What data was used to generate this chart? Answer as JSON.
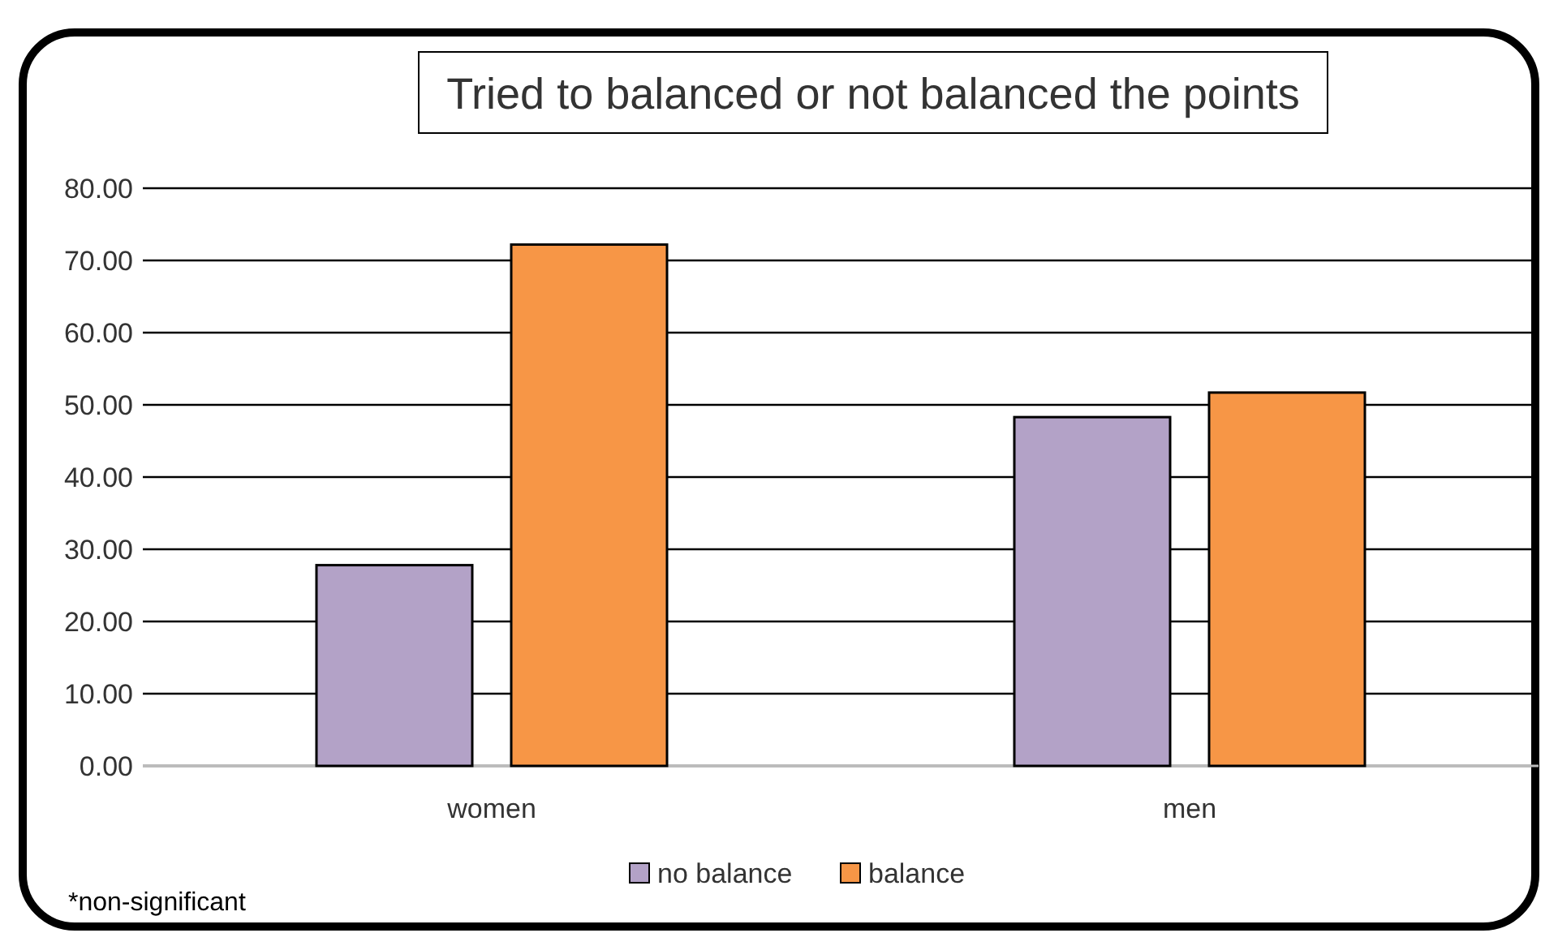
{
  "chart_data": {
    "type": "bar",
    "title": "Tried to balanced or not balanced the points",
    "categories": [
      "women",
      "men"
    ],
    "series": [
      {
        "name": "no balance",
        "color": "#b3a2c7",
        "values": [
          27.8,
          48.3
        ]
      },
      {
        "name": "balance",
        "color": "#f79646",
        "values": [
          72.2,
          51.7
        ]
      }
    ],
    "ylim": [
      0,
      80
    ],
    "yticks": [
      {
        "value": 0,
        "label": "0.00"
      },
      {
        "value": 10,
        "label": "10.00"
      },
      {
        "value": 20,
        "label": "20.00"
      },
      {
        "value": 30,
        "label": "30.00"
      },
      {
        "value": 40,
        "label": "40.00"
      },
      {
        "value": 50,
        "label": "50.00"
      },
      {
        "value": 60,
        "label": "60.00"
      },
      {
        "value": 70,
        "label": "70.00"
      },
      {
        "value": 80,
        "label": "80.00"
      }
    ],
    "grid": true,
    "legend": "bottom",
    "annotations": [
      "*non-significant"
    ]
  }
}
